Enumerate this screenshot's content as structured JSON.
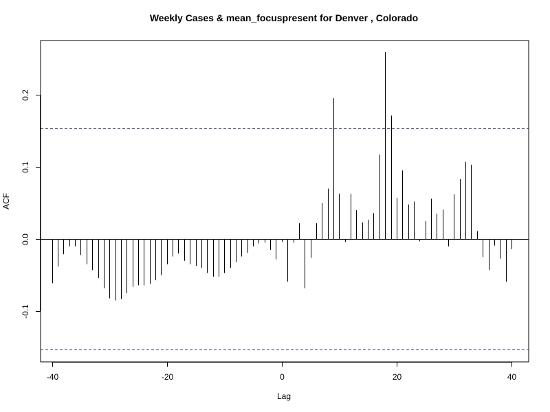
{
  "chart_data": {
    "type": "bar",
    "title": "Weekly Cases & mean_focuspresent for Denver , Colorado",
    "xlabel": "Lag",
    "ylabel": "ACF",
    "xlim": [
      -42,
      43
    ],
    "ylim": [
      -0.17,
      0.275
    ],
    "x_ticks": [
      -40,
      -20,
      0,
      20,
      40
    ],
    "x_tick_labels": [
      "-40",
      "-20",
      "0",
      "20",
      "40"
    ],
    "y_ticks": [
      -0.1,
      0.0,
      0.1,
      0.2
    ],
    "y_tick_labels": [
      "-0.1",
      "0.0",
      "0.1",
      "0.2"
    ],
    "confidence_bound": 0.153,
    "confidence_color": "#1f2f8f",
    "bar_color": "#000000",
    "x": [
      -40,
      -39,
      -38,
      -37,
      -36,
      -35,
      -34,
      -33,
      -32,
      -31,
      -30,
      -29,
      -28,
      -27,
      -26,
      -25,
      -24,
      -23,
      -22,
      -21,
      -20,
      -19,
      -18,
      -17,
      -16,
      -15,
      -14,
      -13,
      -12,
      -11,
      -10,
      -9,
      -8,
      -7,
      -6,
      -5,
      -4,
      -3,
      -2,
      -1,
      0,
      1,
      2,
      3,
      4,
      5,
      6,
      7,
      8,
      9,
      10,
      11,
      12,
      13,
      14,
      15,
      16,
      17,
      18,
      19,
      20,
      21,
      22,
      23,
      24,
      25,
      26,
      27,
      28,
      29,
      30,
      31,
      32,
      33,
      34,
      35,
      36,
      37,
      38,
      39,
      40
    ],
    "values": [
      -0.061,
      -0.038,
      -0.021,
      -0.01,
      -0.01,
      -0.022,
      -0.035,
      -0.043,
      -0.054,
      -0.068,
      -0.082,
      -0.085,
      -0.083,
      -0.075,
      -0.066,
      -0.064,
      -0.064,
      -0.062,
      -0.057,
      -0.05,
      -0.035,
      -0.024,
      -0.02,
      -0.03,
      -0.035,
      -0.037,
      -0.04,
      -0.047,
      -0.052,
      -0.052,
      -0.047,
      -0.04,
      -0.032,
      -0.024,
      -0.019,
      -0.01,
      -0.006,
      -0.005,
      -0.015,
      -0.028,
      -0.004,
      -0.059,
      -0.005,
      0.022,
      -0.068,
      -0.026,
      0.022,
      0.05,
      0.07,
      0.195,
      0.063,
      -0.004,
      0.063,
      0.04,
      0.023,
      0.027,
      0.036,
      0.117,
      0.259,
      0.171,
      0.057,
      0.095,
      0.048,
      0.052,
      -0.003,
      0.025,
      0.056,
      0.035,
      0.041,
      -0.01,
      0.062,
      0.083,
      0.107,
      0.103,
      0.011,
      -0.025,
      -0.043,
      -0.009,
      -0.027,
      -0.059,
      -0.014
    ]
  }
}
